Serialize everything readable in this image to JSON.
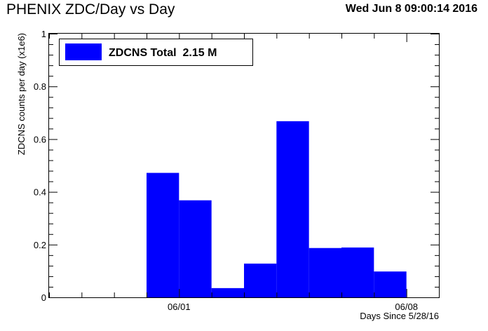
{
  "header": {
    "title": "PHENIX ZDC/Day vs Day",
    "timestamp": "Wed Jun  8 09:00:14 2016"
  },
  "chart_data": {
    "type": "bar",
    "ylabel": "ZDCNS counts per day (x1e6)",
    "xlabel": "Days Since 5/28/16",
    "xlim": [
      0,
      12
    ],
    "ylim": [
      0,
      1
    ],
    "y_ticks": [
      {
        "value": 0,
        "label": "0"
      },
      {
        "value": 0.2,
        "label": "0.2"
      },
      {
        "value": 0.4,
        "label": "0.4"
      },
      {
        "value": 0.6,
        "label": "0.6"
      },
      {
        "value": 0.8,
        "label": "0.8"
      },
      {
        "value": 1,
        "label": "1"
      }
    ],
    "x_ticks": [
      {
        "value": 4,
        "label": "06/01"
      },
      {
        "value": 11,
        "label": "06/08"
      }
    ],
    "legend": {
      "label": "ZDCNS Total  2.15 M",
      "placement": "top-left"
    },
    "bar_color": "#0000ff",
    "bins": [
      {
        "start": 3,
        "end": 4,
        "value": 0.472
      },
      {
        "start": 4,
        "end": 5,
        "value": 0.368
      },
      {
        "start": 5,
        "end": 6,
        "value": 0.035
      },
      {
        "start": 6,
        "end": 7,
        "value": 0.128
      },
      {
        "start": 7,
        "end": 8,
        "value": 0.668
      },
      {
        "start": 8,
        "end": 9,
        "value": 0.187
      },
      {
        "start": 9,
        "end": 10,
        "value": 0.189
      },
      {
        "start": 10,
        "end": 11,
        "value": 0.098
      }
    ]
  }
}
